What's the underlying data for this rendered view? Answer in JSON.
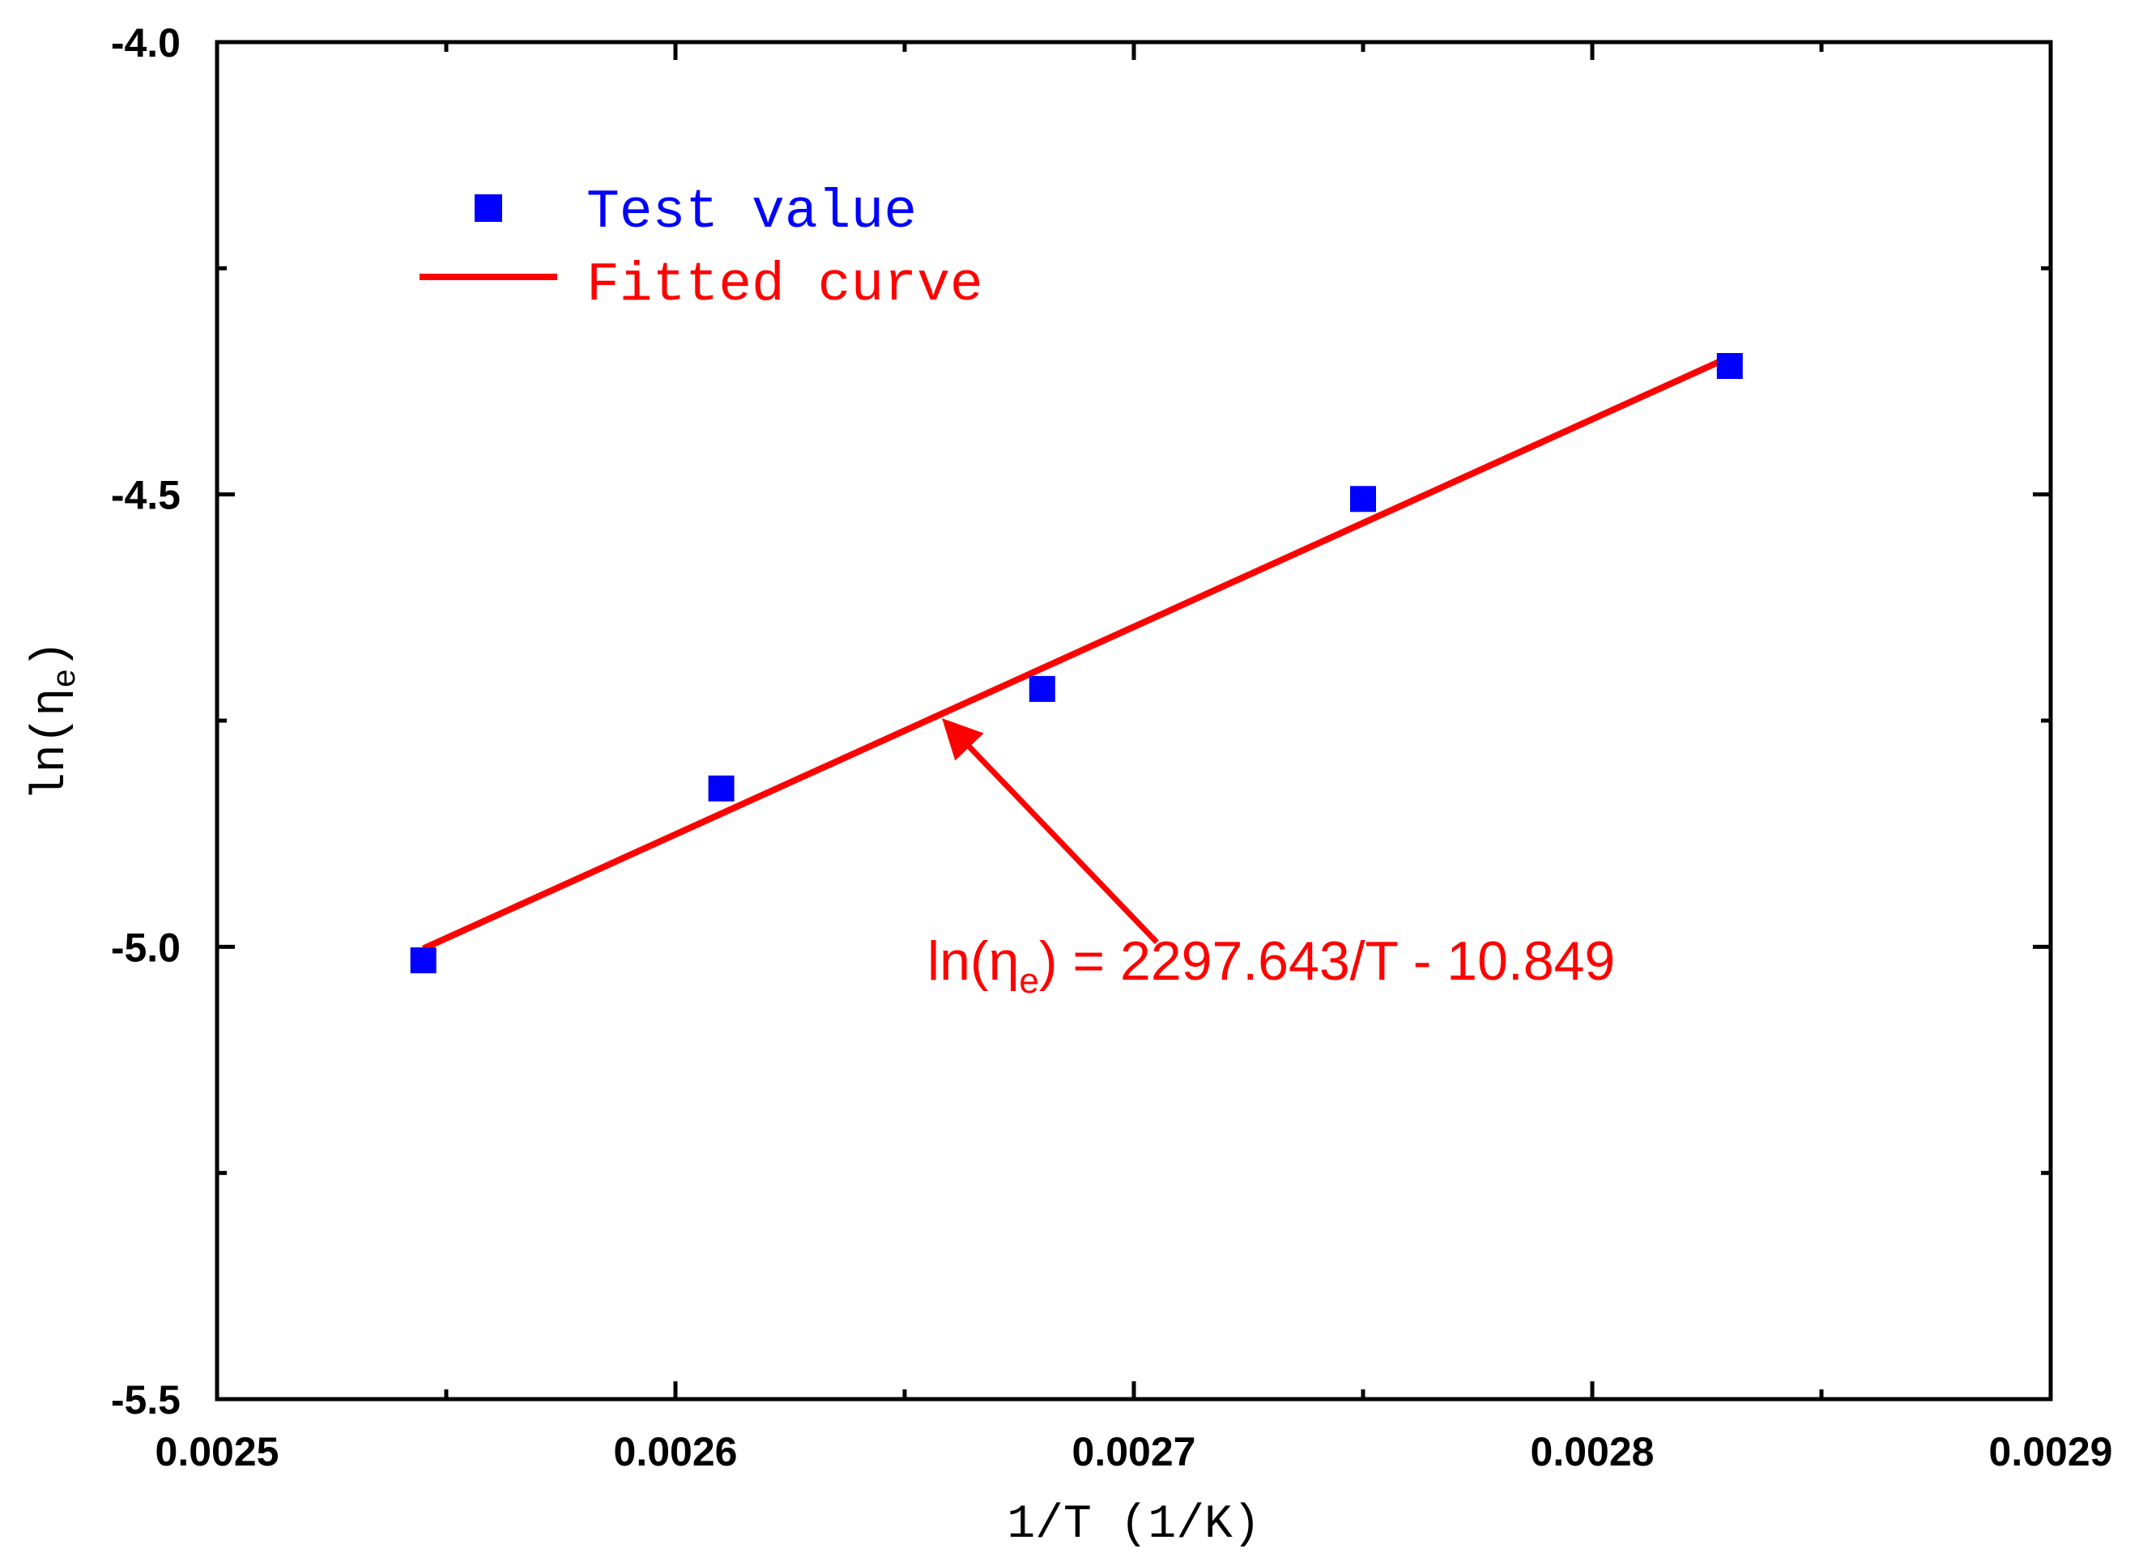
{
  "chart_data": {
    "type": "scatter",
    "title": "",
    "xlabel": "1/T (1/K)",
    "ylabel_main": "ln(η",
    "ylabel_sub": "e",
    "ylabel_close": ")",
    "xlim": [
      0.0025,
      0.0029
    ],
    "ylim": [
      -5.5,
      -4.0
    ],
    "x_ticks": [
      0.0025,
      0.0026,
      0.0027,
      0.0028,
      0.0029
    ],
    "x_tick_labels": [
      "0.0025",
      "0.0026",
      "0.0027",
      "0.0028",
      "0.0029"
    ],
    "y_ticks": [
      -5.5,
      -5.0,
      -4.5,
      -4.0
    ],
    "y_tick_labels": [
      "-5.5",
      "-5.0",
      "-4.5",
      "-4.0"
    ],
    "series": [
      {
        "name": "Test value",
        "kind": "scatter",
        "marker": "square",
        "color": "#0000ff",
        "x": [
          0.002545,
          0.00261,
          0.00268,
          0.00275,
          0.00283
        ],
        "y": [
          -5.015,
          -4.825,
          -4.715,
          -4.505,
          -4.358
        ]
      },
      {
        "name": "Fitted curve",
        "kind": "line",
        "color": "#ff0000",
        "x": [
          0.002545,
          0.00283
        ],
        "y": [
          -5.002,
          -4.348
        ]
      }
    ],
    "legend": {
      "position": "top-left",
      "items": [
        {
          "label": "Test value",
          "color": "#0000ff",
          "symbol": "square"
        },
        {
          "label": "Fitted curve",
          "color": "#ff0000",
          "symbol": "line"
        }
      ]
    },
    "annotation": {
      "prefix": "ln(η",
      "sub": "e",
      "suffix": ") = 2297.643/T - 10.849",
      "color": "#ff0000",
      "arrow_target": {
        "x": 0.002659,
        "y": -4.752
      },
      "arrow_from": {
        "x": 0.002705,
        "y": -4.995
      }
    }
  }
}
